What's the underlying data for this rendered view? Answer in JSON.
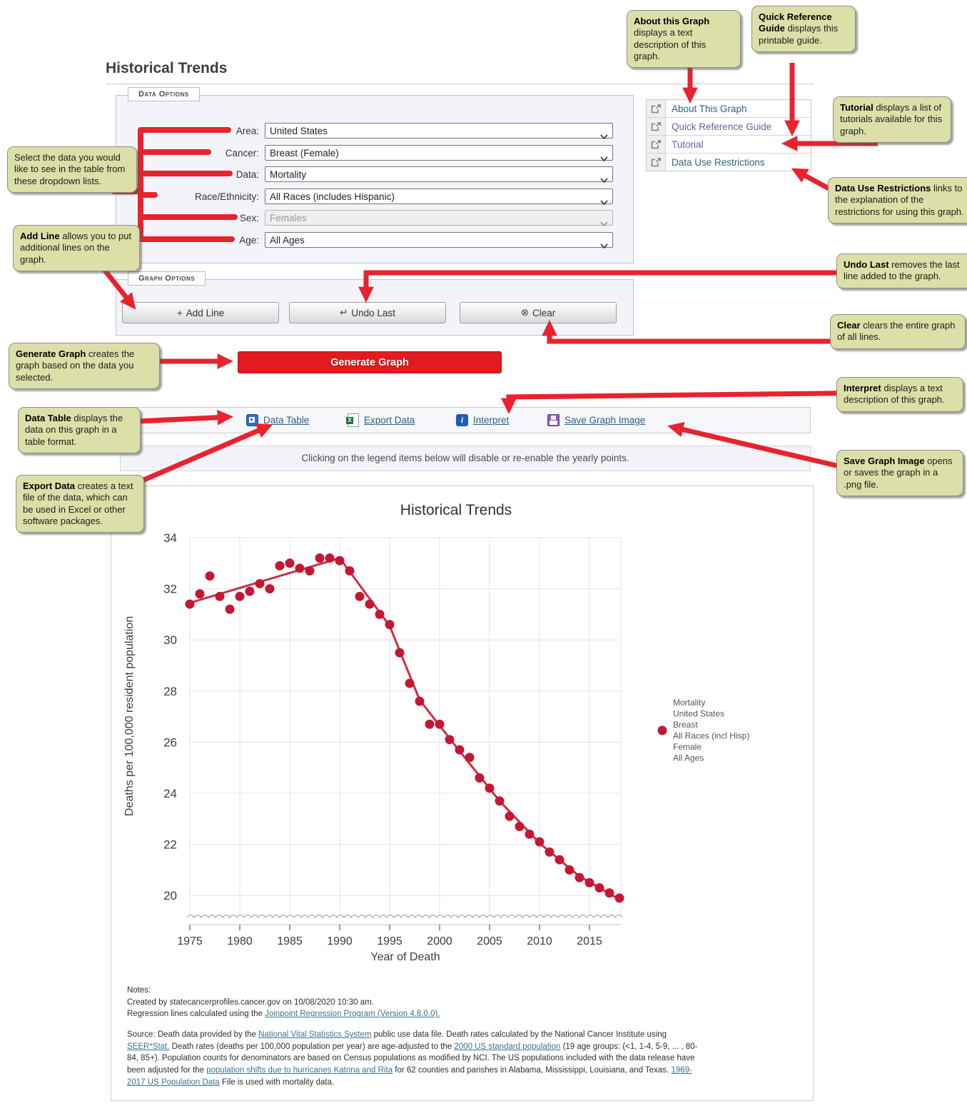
{
  "page": {
    "title": "Historical Trends"
  },
  "data_options": {
    "legend": "Data Options",
    "fields": [
      {
        "label": "Area:",
        "value": "United States",
        "disabled": false
      },
      {
        "label": "Cancer:",
        "value": "Breast (Female)",
        "disabled": false
      },
      {
        "label": "Data:",
        "value": "Mortality",
        "disabled": false
      },
      {
        "label": "Race/Ethnicity:",
        "value": "All Races (includes Hispanic)",
        "disabled": false
      },
      {
        "label": "Sex:",
        "value": "Females",
        "disabled": true
      },
      {
        "label": "Age:",
        "value": "All Ages",
        "disabled": false
      }
    ]
  },
  "links_panel": {
    "items": [
      {
        "label": "About This Graph",
        "visited": false
      },
      {
        "label": "Quick Reference Guide",
        "visited": true
      },
      {
        "label": "Tutorial",
        "visited": true
      },
      {
        "label": "Data Use Restrictions",
        "visited": false
      }
    ]
  },
  "graph_options": {
    "legend": "Graph Options",
    "buttons": [
      {
        "icon": "+",
        "label": "Add Line"
      },
      {
        "icon": "↵",
        "label": "Undo Last"
      },
      {
        "icon": "⊗",
        "label": "Clear"
      }
    ]
  },
  "generate_button": "Generate Graph",
  "toolbar": {
    "items": [
      {
        "label": "Data Table"
      },
      {
        "label": "Export Data"
      },
      {
        "label": "Interpret"
      },
      {
        "label": "Save Graph Image"
      }
    ]
  },
  "legend_note": "Clicking on the legend items below will disable or re-enable the yearly points.",
  "chart_data": {
    "type": "scatter",
    "title": "Historical Trends",
    "xlabel": "Year of Death",
    "ylabel": "Deaths per 100,000 resident population",
    "ylim": [
      20,
      34
    ],
    "yticks": [
      20,
      22,
      24,
      26,
      28,
      30,
      32,
      34
    ],
    "xticks": [
      1975,
      1980,
      1985,
      1990,
      1995,
      2000,
      2005,
      2010,
      2015
    ],
    "axis_break": true,
    "grid": true,
    "point_color": "#c41734",
    "trend_color": "#ca3049",
    "x": [
      1975,
      1976,
      1977,
      1978,
      1979,
      1980,
      1981,
      1982,
      1983,
      1984,
      1985,
      1986,
      1987,
      1988,
      1989,
      1990,
      1991,
      1992,
      1993,
      1994,
      1995,
      1996,
      1997,
      1998,
      1999,
      2000,
      2001,
      2002,
      2003,
      2004,
      2005,
      2006,
      2007,
      2008,
      2009,
      2010,
      2011,
      2012,
      2013,
      2014,
      2015,
      2016,
      2017,
      2018
    ],
    "values": [
      31.4,
      31.8,
      32.5,
      31.7,
      31.2,
      31.7,
      31.9,
      32.2,
      32.0,
      32.9,
      33.0,
      32.8,
      32.7,
      33.2,
      33.2,
      33.1,
      32.7,
      31.7,
      31.4,
      31.0,
      30.6,
      29.5,
      28.3,
      27.6,
      26.7,
      26.7,
      26.1,
      25.7,
      25.4,
      24.6,
      24.2,
      23.7,
      23.1,
      22.7,
      22.4,
      22.1,
      21.7,
      21.4,
      21.0,
      20.7,
      20.5,
      20.3,
      20.1,
      19.9
    ],
    "trend": [
      [
        1975,
        31.45
      ],
      [
        1990,
        33.2
      ],
      [
        1995,
        30.55
      ],
      [
        1998,
        27.65
      ],
      [
        2002,
        25.65
      ],
      [
        2006,
        23.7
      ],
      [
        2010,
        22.05
      ],
      [
        2014,
        20.75
      ],
      [
        2018,
        19.85
      ]
    ],
    "legend_lines": [
      "Mortality",
      "United States",
      "Breast",
      "All Races (incl Hisp)",
      "Female",
      "All Ages"
    ],
    "legend_position": "right"
  },
  "notes": {
    "heading": "Notes:",
    "created": "Created by statecancerprofiles.cancer.gov on 10/08/2020 10:30 am.",
    "regression_pre": "Regression lines calculated using the ",
    "regression_link": "Joinpoint Regression Program (Version 4.8.0.0).",
    "source_segments": [
      {
        "t": "Source: Death data provided by the "
      },
      {
        "t": "National Vital Statistics System",
        "link": true
      },
      {
        "t": " public use data file. Death rates calculated by the National Cancer Institute using "
      },
      {
        "t": "SEER*Stat.",
        "link": true
      },
      {
        "t": " Death rates (deaths per 100,000 population per year) are age-adjusted to the "
      },
      {
        "t": "2000 US standard population",
        "link": true
      },
      {
        "t": " (19 age groups: (<1, 1-4, 5-9, ... , 80-84, 85+). Population counts for denominators are based on Census populations as modified by NCI. The US populations included with the data release have been adjusted for the "
      },
      {
        "t": "population shifts due to hurricanes Katrina and Rita",
        "link": true
      },
      {
        "t": " for 62 counties and parishes in Alabama, Mississippi, Louisiana, and Texas. "
      },
      {
        "t": "1969-2017 US Population Data",
        "link": true
      },
      {
        "t": " File is used with mortality data."
      }
    ]
  },
  "callouts": [
    {
      "bold": "",
      "rest": "Select the data you would like to see in the table from these dropdown lists."
    },
    {
      "bold": "Add Line",
      "rest": " allows you to put additional lines on the graph."
    },
    {
      "bold": "Generate Graph",
      "rest": " creates the graph based on the data you selected."
    },
    {
      "bold": "Data Table",
      "rest": " displays the data on this graph in a table format."
    },
    {
      "bold": "Export Data",
      "rest": " creates a text file of the data, which can be used in Excel or other software packages."
    },
    {
      "bold": "About this Graph",
      "rest": " displays a text description of this graph."
    },
    {
      "bold": "Quick Reference Guide",
      "rest": " displays this printable guide."
    },
    {
      "bold": "Tutorial",
      "rest": " displays a list of tutorials available for this graph."
    },
    {
      "bold": "Data Use Restrictions",
      "rest": " links to the explanation of the restrictions for using this graph."
    },
    {
      "bold": "Undo Last",
      "rest": " removes the last line added to the graph."
    },
    {
      "bold": "Clear",
      "rest": " clears the entire graph of all lines."
    },
    {
      "bold": "Interpret",
      "rest": " displays a text description of this graph."
    },
    {
      "bold": "Save Graph Image",
      "rest": " opens or saves the graph in a .png file."
    }
  ]
}
